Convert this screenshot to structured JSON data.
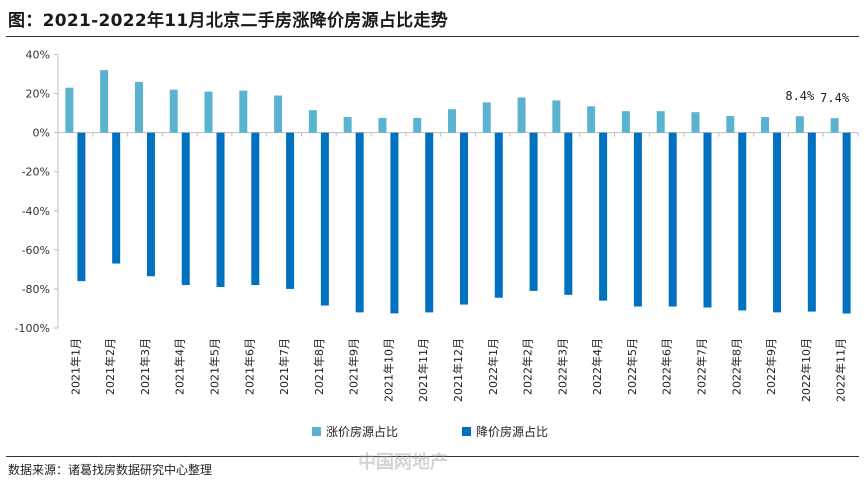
{
  "header": {
    "title": "图：2021-2022年11月北京二手房涨降价房源占比走势"
  },
  "footer": {
    "source": "数据来源：诸葛找房数据研究中心整理",
    "watermark": "中国网地产"
  },
  "colors": {
    "rise": "#5bb4cf",
    "fall": "#0070c0",
    "axis": "#bfbfbf"
  },
  "chart_data": {
    "type": "bar",
    "categories": [
      "2021年1月",
      "2021年2月",
      "2021年3月",
      "2021年4月",
      "2021年5月",
      "2021年6月",
      "2021年7月",
      "2021年8月",
      "2021年9月",
      "2021年10月",
      "2021年11月",
      "2021年12月",
      "2022年1月",
      "2022年2月",
      "2022年3月",
      "2022年4月",
      "2022年5月",
      "2022年6月",
      "2022年7月",
      "2022年8月",
      "2022年9月",
      "2022年10月",
      "2022年11月"
    ],
    "series": [
      {
        "name": "涨价房源占比",
        "values": [
          23,
          32,
          26,
          22,
          21,
          21.5,
          19,
          11.5,
          8,
          7.5,
          7.5,
          12,
          15.5,
          18,
          16.5,
          13.5,
          11,
          11,
          10.5,
          8.5,
          8,
          8.4,
          7.4
        ]
      },
      {
        "name": "降价房源占比",
        "values": [
          -76,
          -67,
          -73.5,
          -78,
          -79,
          -78,
          -80,
          -88.5,
          -92,
          -92.5,
          -92,
          -88,
          -84.5,
          -81,
          -83,
          -86,
          -89,
          -89,
          -89.5,
          -91,
          -92,
          -91.6,
          -92.6
        ]
      }
    ],
    "data_labels": [
      {
        "series": 0,
        "index": 21,
        "text": "8.4%"
      },
      {
        "series": 0,
        "index": 22,
        "text": "7.4%"
      }
    ],
    "yticks": [
      "40%",
      "20%",
      "0%",
      "-20%",
      "-40%",
      "-60%",
      "-80%",
      "-100%"
    ],
    "ylim": [
      -100,
      40
    ],
    "legend": [
      "涨价房源占比",
      "降价房源占比"
    ],
    "legend_position": "bottom"
  }
}
